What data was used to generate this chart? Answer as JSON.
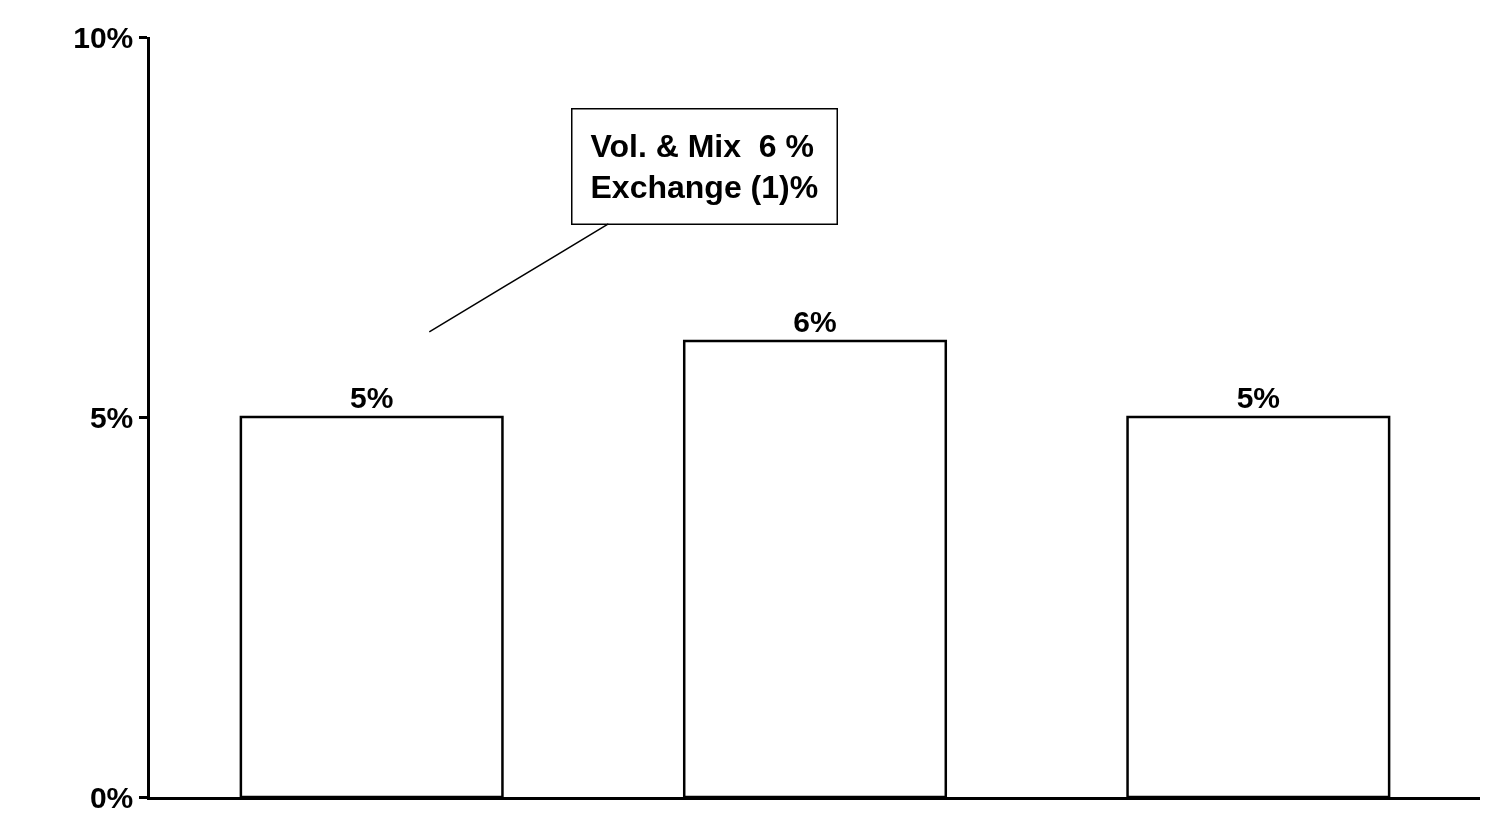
{
  "chart_data": {
    "type": "bar",
    "categories": [
      null,
      null,
      null
    ],
    "values": [
      5,
      6,
      5
    ],
    "color": "#ffffff",
    "value_labels": [
      "5%",
      "6%",
      "5%"
    ],
    "ylim": [
      0,
      10
    ],
    "yticks": [
      {
        "value": 0,
        "label": "0%"
      },
      {
        "value": 5,
        "label": "5%"
      },
      {
        "value": 10,
        "label": "10%"
      }
    ],
    "annotations": [
      "Vol. & Mix  6 %\nExchange (1)%"
    ]
  }
}
